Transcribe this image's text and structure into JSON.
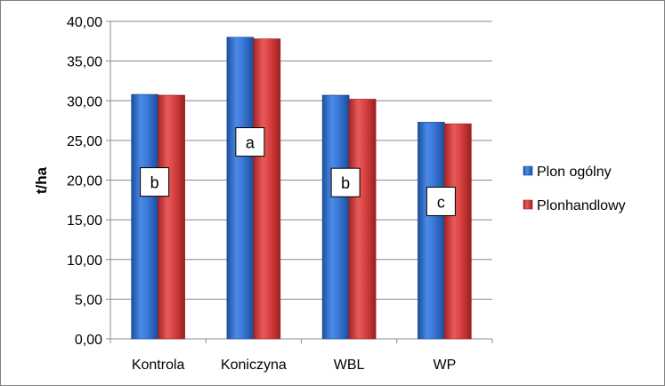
{
  "chart_data": {
    "type": "bar",
    "title": "",
    "xlabel": "",
    "ylabel": "t/ha",
    "ylim": [
      0,
      40
    ],
    "ytick_step": 5,
    "ytick_labels": [
      "0,00",
      "5,00",
      "10,00",
      "15,00",
      "20,00",
      "25,00",
      "30,00",
      "35,00",
      "40,00"
    ],
    "grid": true,
    "legend_position": "right",
    "categories": [
      "Kontrola",
      "Koniczyna",
      "WBL",
      "WP"
    ],
    "series": [
      {
        "name": "Plon ogólny",
        "color": "#2e6fd0",
        "values": [
          30.8,
          38.0,
          30.7,
          27.3
        ]
      },
      {
        "name": "Plonhandlowy",
        "color": "#d33b3b",
        "values": [
          30.7,
          37.8,
          30.2,
          27.1
        ]
      }
    ],
    "group_labels": [
      "b",
      "a",
      "b",
      "c"
    ]
  }
}
